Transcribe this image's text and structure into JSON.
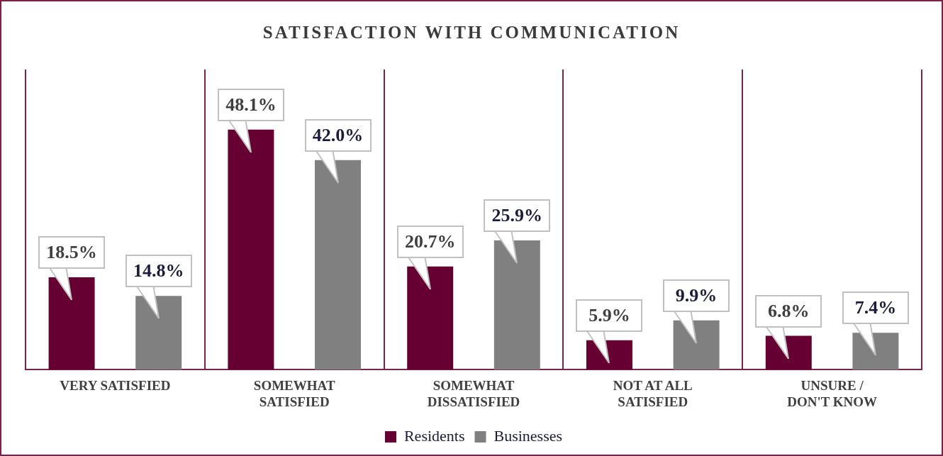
{
  "chart_data": {
    "type": "bar",
    "title": "SATISFACTION WITH COMMUNICATION",
    "categories": [
      "VERY SATISFIED",
      "SOMEWHAT SATISFIED",
      "SOMEWHAT DISSATISFIED",
      "NOT AT ALL SATISFIED",
      "UNSURE / DON'T KNOW"
    ],
    "series": [
      {
        "name": "Residents",
        "color": "#660033",
        "values": [
          18.5,
          48.1,
          20.7,
          5.9,
          6.8
        ],
        "value_labels": [
          "18.5%",
          "48.1%",
          "20.7%",
          "5.9%",
          "6.8%"
        ]
      },
      {
        "name": "Businesses",
        "color": "#808080",
        "values": [
          14.8,
          42.0,
          25.9,
          9.9,
          7.4
        ],
        "value_labels": [
          "14.8%",
          "42.0%",
          "25.9%",
          "9.9%",
          "7.4%"
        ]
      }
    ],
    "grid": "x",
    "legend": "bottom"
  }
}
